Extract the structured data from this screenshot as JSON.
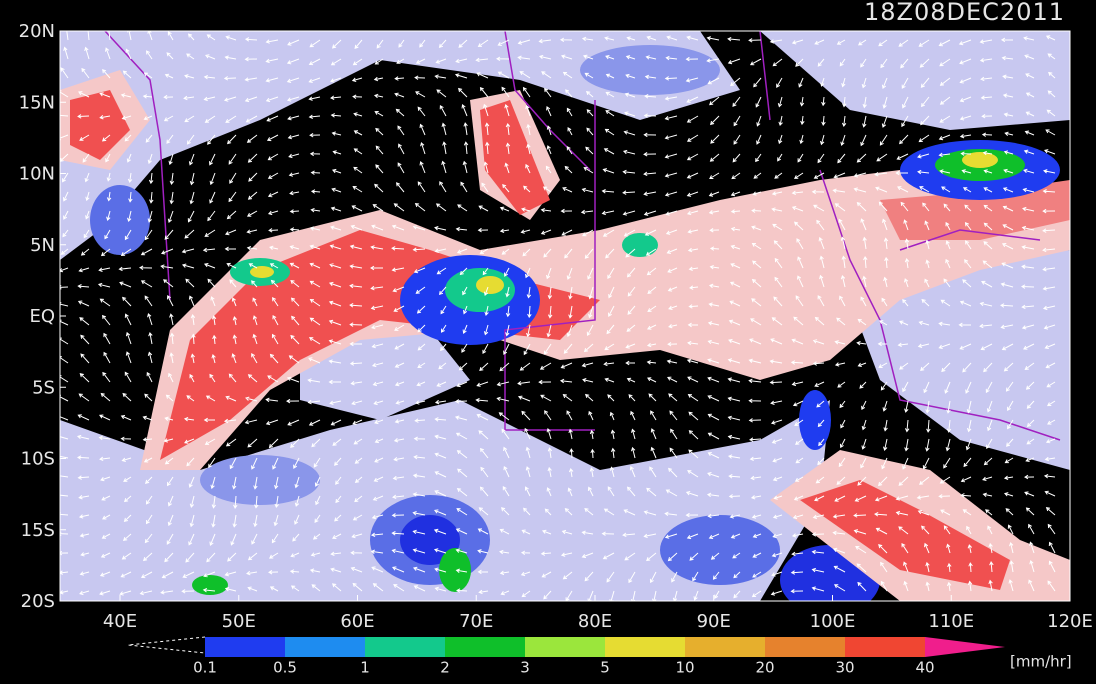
{
  "map": {
    "title": "18Z08DEC2011",
    "lat_labels": [
      "20N",
      "15N",
      "10N",
      "5N",
      "EQ",
      "5S",
      "10S",
      "15S",
      "20S"
    ],
    "lon_labels": [
      "40E",
      "50E",
      "60E",
      "70E",
      "80E",
      "90E",
      "100E",
      "110E",
      "120E"
    ],
    "colorbar": {
      "levels": [
        0.1,
        0.5,
        1,
        2,
        3,
        5,
        10,
        20,
        30,
        40
      ],
      "colors": [
        "#1f3cf0",
        "#1e8cf0",
        "#13c98c",
        "#0fbf2a",
        "#9be63c",
        "#e6dc32",
        "#e6af2d",
        "#e6822d",
        "#f04632",
        "#f01e8c"
      ],
      "unit": "[mm/hr]"
    }
  }
}
